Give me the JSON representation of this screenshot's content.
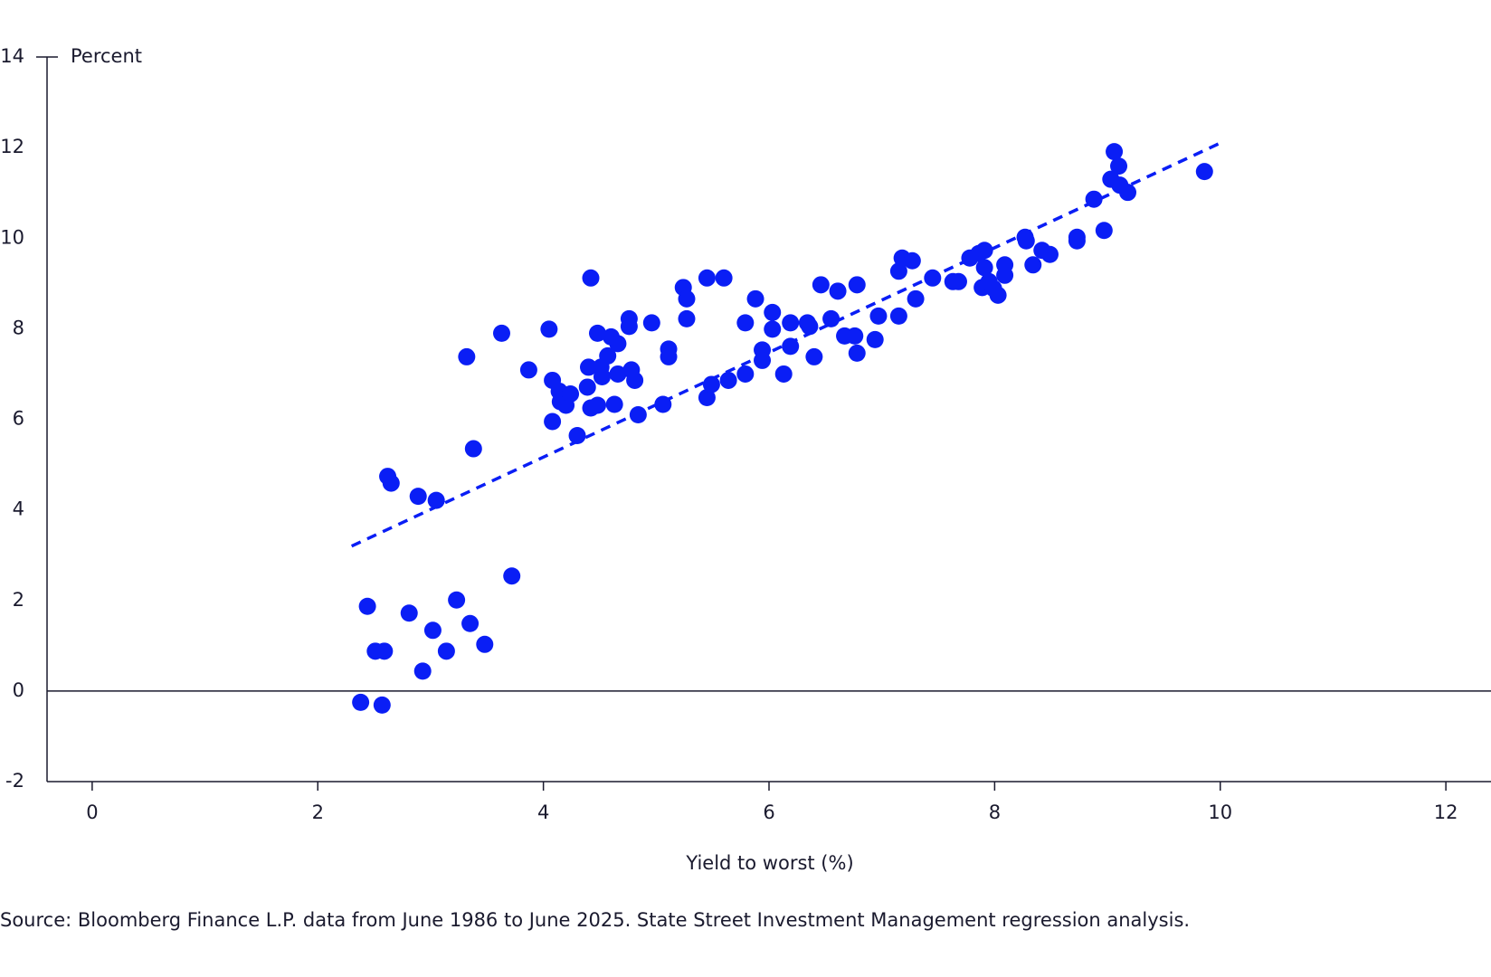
{
  "chart_data": {
    "type": "scatter",
    "y_axis_label": "Percent",
    "x_axis_label": "Yield to worst (%)",
    "source": "Source: Bloomberg Finance L.P. data from June 1986 to June 2025. State Street Investment Management regression analysis.",
    "xlim": [
      -0.4,
      12.4
    ],
    "ylim": [
      -2,
      14
    ],
    "xticks": [
      0,
      2,
      4,
      6,
      8,
      10,
      12
    ],
    "yticks": [
      -2,
      0,
      2,
      4,
      6,
      8,
      10,
      12,
      14
    ],
    "series": [
      {
        "color": "#0a1ef5",
        "x": [
          2.38,
          2.57,
          2.44,
          2.51,
          2.59,
          2.81,
          2.93,
          3.02,
          3.14,
          3.23,
          3.35,
          3.48,
          3.72,
          2.62,
          2.65,
          2.89,
          3.05,
          3.38,
          3.32,
          3.63,
          3.87,
          4.05,
          4.08,
          4.08,
          4.14,
          4.15,
          4.2,
          4.24,
          4.3,
          4.39,
          4.4,
          4.42,
          4.42,
          4.48,
          4.48,
          4.51,
          4.52,
          4.57,
          4.6,
          4.63,
          4.66,
          4.66,
          4.76,
          4.76,
          4.78,
          4.81,
          4.84,
          4.96,
          5.06,
          5.11,
          5.11,
          5.24,
          5.27,
          5.27,
          5.45,
          5.45,
          5.49,
          5.6,
          5.64,
          5.79,
          5.79,
          5.88,
          5.94,
          5.94,
          6.03,
          6.03,
          6.13,
          6.19,
          6.19,
          6.34,
          6.36,
          6.4,
          6.46,
          6.55,
          6.61,
          6.67,
          6.76,
          6.78,
          6.78,
          6.94,
          6.97,
          7.15,
          7.15,
          7.18,
          7.27,
          7.3,
          7.45,
          7.63,
          7.68,
          7.78,
          7.86,
          7.91,
          7.91,
          7.89,
          7.95,
          7.99,
          8.03,
          8.09,
          8.09,
          8.27,
          8.28,
          8.34,
          8.42,
          8.49,
          8.73,
          8.73,
          8.88,
          8.97,
          9.03,
          9.06,
          9.1,
          9.11,
          9.18,
          9.86
        ],
        "y": [
          -0.25,
          -0.31,
          1.87,
          0.88,
          0.88,
          1.72,
          0.44,
          1.34,
          0.88,
          2.01,
          1.49,
          1.03,
          2.54,
          4.74,
          4.59,
          4.3,
          4.21,
          5.35,
          7.38,
          7.9,
          7.09,
          7.99,
          5.95,
          6.86,
          6.62,
          6.39,
          6.31,
          6.56,
          5.64,
          6.71,
          7.15,
          9.12,
          6.25,
          6.31,
          7.9,
          7.15,
          6.94,
          7.4,
          7.82,
          6.33,
          7.67,
          7.0,
          8.22,
          8.05,
          7.09,
          6.86,
          6.1,
          8.13,
          6.33,
          7.55,
          7.38,
          8.91,
          8.66,
          8.22,
          9.12,
          6.48,
          6.77,
          9.12,
          6.86,
          7.0,
          8.13,
          8.66,
          7.53,
          7.3,
          8.36,
          7.99,
          7.0,
          8.13,
          7.61,
          8.13,
          8.05,
          7.38,
          8.97,
          8.22,
          8.83,
          7.84,
          7.84,
          8.97,
          7.46,
          7.76,
          8.28,
          9.27,
          8.28,
          9.56,
          9.5,
          8.66,
          9.12,
          9.04,
          9.04,
          9.56,
          9.66,
          9.73,
          9.35,
          8.91,
          9.04,
          8.89,
          8.74,
          9.41,
          9.18,
          10.02,
          9.94,
          9.41,
          9.73,
          9.64,
          10.02,
          9.94,
          10.86,
          10.17,
          11.3,
          11.91,
          11.59,
          11.17,
          11.01,
          11.47
        ]
      }
    ],
    "trendline": {
      "color": "#0a1ef5",
      "x": [
        2.3,
        10.0
      ],
      "y": [
        3.2,
        12.1
      ]
    }
  }
}
